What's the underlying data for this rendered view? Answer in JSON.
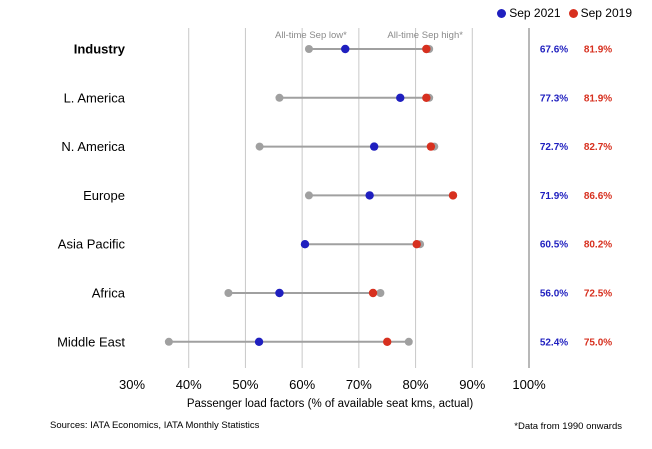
{
  "chart_data": {
    "type": "scatter",
    "xlabel": "Passenger load factors (% of available seat kms, actual)",
    "xlim": [
      30,
      100
    ],
    "xticks": [
      "30%",
      "40%",
      "50%",
      "60%",
      "70%",
      "80%",
      "90%",
      "100%"
    ],
    "grid": true,
    "legend_position": "top-right",
    "annotations": {
      "low_label": "All-time Sep low*",
      "high_label": "All-time Sep high*"
    },
    "series": [
      {
        "name": "Sep 2021",
        "color": "#1f1fbf"
      },
      {
        "name": "Sep 2019",
        "color": "#d7301f"
      }
    ],
    "range_color": "#a0a0a0",
    "regions": [
      {
        "name": "Industry",
        "bold": true,
        "low": 61.2,
        "high": 82.4,
        "sep2021": 67.6,
        "sep2019": 81.9,
        "label2021": "67.6%",
        "label2019": "81.9%"
      },
      {
        "name": "L. America",
        "bold": false,
        "low": 56.0,
        "high": 82.4,
        "sep2021": 77.3,
        "sep2019": 81.9,
        "label2021": "77.3%",
        "label2019": "81.9%"
      },
      {
        "name": "N. America",
        "bold": false,
        "low": 52.5,
        "high": 83.3,
        "sep2021": 72.7,
        "sep2019": 82.7,
        "label2021": "72.7%",
        "label2019": "82.7%"
      },
      {
        "name": "Europe",
        "bold": false,
        "low": 61.2,
        "high": 86.6,
        "sep2021": 71.9,
        "sep2019": 86.6,
        "label2021": "71.9%",
        "label2019": "86.6%"
      },
      {
        "name": "Asia Pacific",
        "bold": false,
        "low": 60.5,
        "high": 80.8,
        "sep2021": 60.5,
        "sep2019": 80.2,
        "label2021": "60.5%",
        "label2019": "80.2%"
      },
      {
        "name": "Africa",
        "bold": false,
        "low": 47.0,
        "high": 73.8,
        "sep2021": 56.0,
        "sep2019": 72.5,
        "label2021": "56.0%",
        "label2019": "72.5%"
      },
      {
        "name": "Middle East",
        "bold": false,
        "low": 36.5,
        "high": 78.8,
        "sep2021": 52.4,
        "sep2019": 75.0,
        "label2021": "52.4%",
        "label2019": "75.0%"
      }
    ]
  },
  "footer": {
    "sources": "Sources: IATA Economics, IATA Monthly Statistics",
    "note": "*Data from 1990 onwards"
  }
}
